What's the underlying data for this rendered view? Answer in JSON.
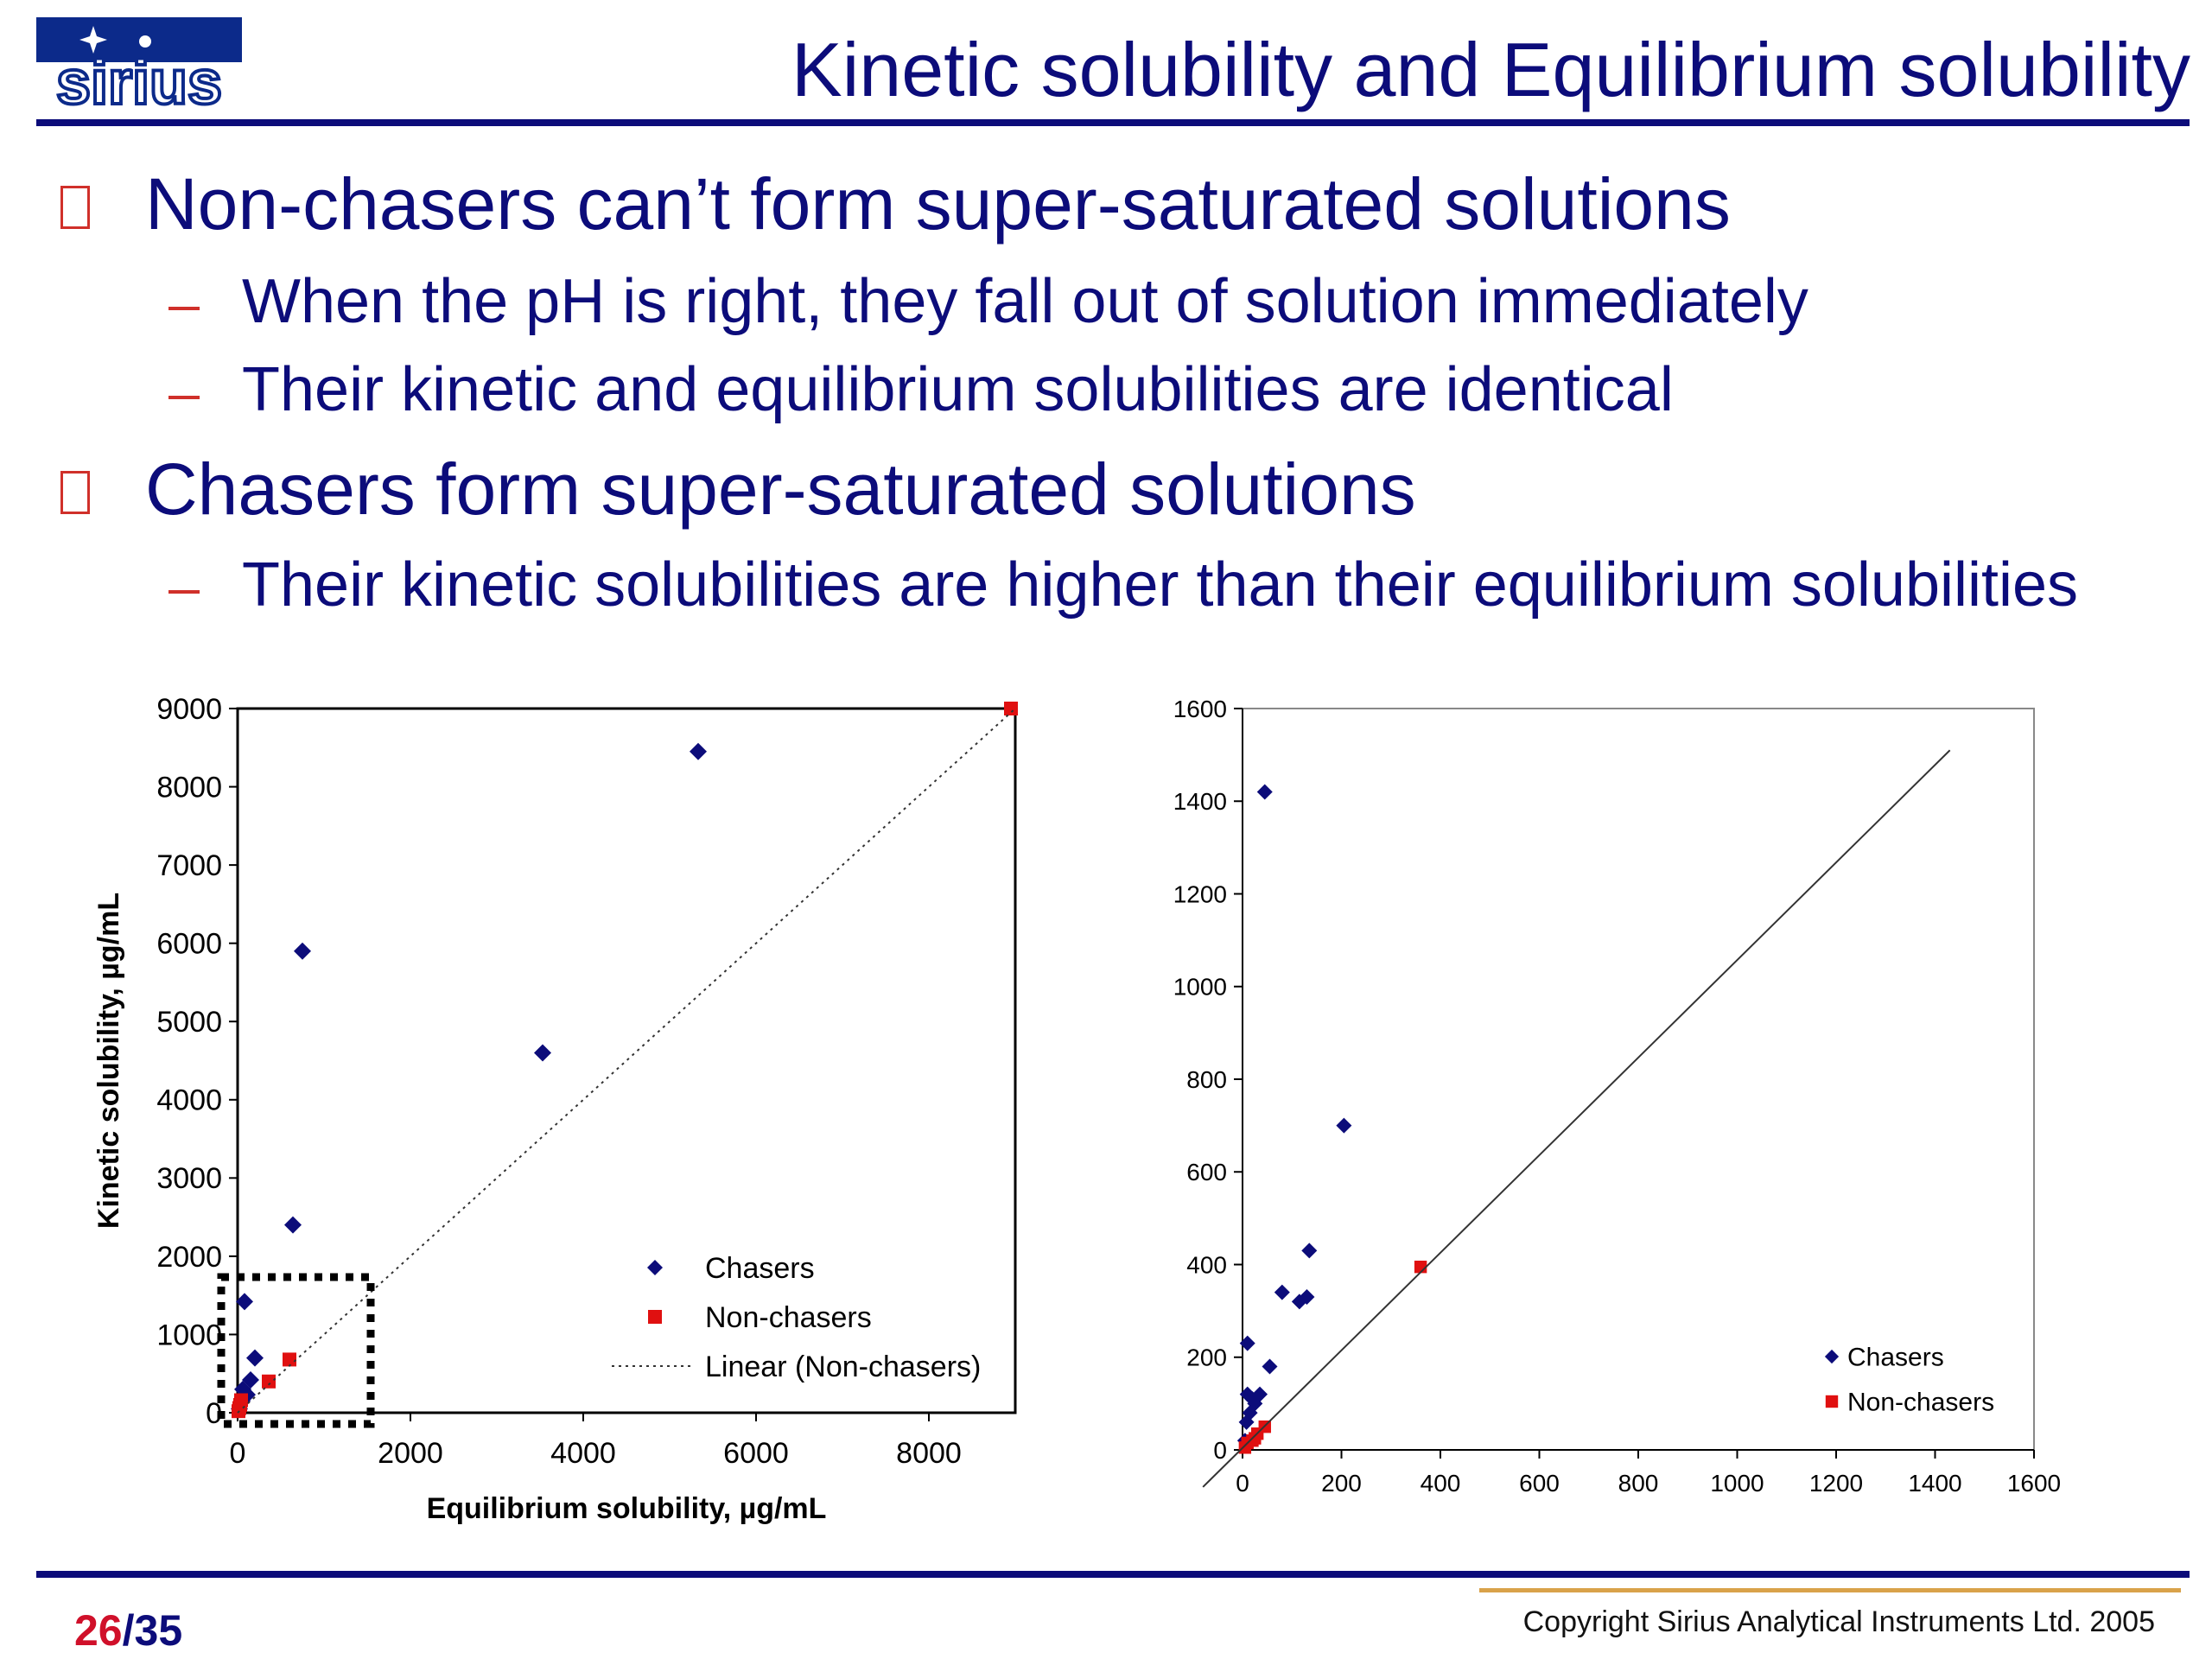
{
  "header": {
    "logo_text": "sirius",
    "title": "Kinetic solubility and Equilibrium solubility"
  },
  "bullets": {
    "b1": "Non-chasers can’t form super-saturated solutions",
    "b1_s1": "When the pH is right, they fall out of solution immediately",
    "b1_s2": "Their kinetic and equilibrium solubilities are identical",
    "b2": "Chasers form super-saturated solutions",
    "b2_s1": "Their kinetic solubilities are higher than their equilibrium solubilities"
  },
  "colors": {
    "title": "#0c0c7a",
    "bullet_mark": "#d0302a",
    "chasers": "#0c0c7a",
    "non_chasers": "#e01010",
    "page_current": "#d0102a"
  },
  "footer": {
    "page_current": "26",
    "page_sep": "/",
    "page_total": "35",
    "copyright": "Copyright Sirius Analytical Instruments Ltd. 2005"
  },
  "chart_data": [
    {
      "type": "scatter",
      "title": "",
      "xlabel": "Equilibrium solubility, µg/mL",
      "ylabel": "Kinetic solubility, µg/mL",
      "xlim": [
        0,
        9000
      ],
      "ylim": [
        0,
        9000
      ],
      "xticks": [
        "0",
        "2000",
        "4000",
        "6000",
        "8000"
      ],
      "yticks": [
        "0",
        "1000",
        "2000",
        "3000",
        "4000",
        "5000",
        "6000",
        "7000",
        "8000",
        "9000"
      ],
      "legend_position": "bottom-right",
      "grid": false,
      "series": [
        {
          "name": "Chasers",
          "marker": "diamond",
          "points": [
            [
              20,
              50
            ],
            [
              50,
              150
            ],
            [
              60,
              300
            ],
            [
              80,
              1420
            ],
            [
              110,
              230
            ],
            [
              150,
              420
            ],
            [
              200,
              700
            ],
            [
              640,
              2400
            ],
            [
              750,
              5900
            ],
            [
              3530,
              4600
            ],
            [
              5330,
              8450
            ]
          ]
        },
        {
          "name": "Non-chasers",
          "marker": "square",
          "points": [
            [
              10,
              20
            ],
            [
              20,
              60
            ],
            [
              30,
              100
            ],
            [
              40,
              160
            ],
            [
              360,
              400
            ],
            [
              600,
              680
            ],
            [
              8950,
              9000
            ]
          ]
        },
        {
          "name": "Linear (Non-chasers)",
          "style": "dotted-line",
          "points": [
            [
              0,
              0
            ],
            [
              9000,
              9000
            ]
          ]
        }
      ],
      "annotation": "zoom-region-box"
    },
    {
      "type": "scatter",
      "title": "",
      "xlabel": "",
      "ylabel": "",
      "xlim": [
        0,
        1600
      ],
      "ylim": [
        0,
        1600
      ],
      "xticks": [
        "0",
        "200",
        "400",
        "600",
        "800",
        "1000",
        "1200",
        "1400",
        "1600"
      ],
      "yticks": [
        "0",
        "200",
        "400",
        "600",
        "800",
        "1000",
        "1200",
        "1400",
        "1600"
      ],
      "legend_position": "bottom-right",
      "grid": false,
      "series": [
        {
          "name": "Chasers",
          "marker": "diamond",
          "points": [
            [
              5,
              20
            ],
            [
              8,
              60
            ],
            [
              10,
              230
            ],
            [
              10,
              120
            ],
            [
              15,
              80
            ],
            [
              20,
              110
            ],
            [
              25,
              100
            ],
            [
              35,
              120
            ],
            [
              45,
              1420
            ],
            [
              55,
              180
            ],
            [
              80,
              340
            ],
            [
              115,
              320
            ],
            [
              130,
              330
            ],
            [
              135,
              430
            ],
            [
              205,
              700
            ]
          ]
        },
        {
          "name": "Non-chasers",
          "marker": "square",
          "points": [
            [
              5,
              5
            ],
            [
              10,
              15
            ],
            [
              20,
              20
            ],
            [
              25,
              25
            ],
            [
              30,
              35
            ],
            [
              45,
              50
            ],
            [
              360,
              395
            ]
          ]
        },
        {
          "name": "",
          "style": "solid-line",
          "points": [
            [
              -80,
              -80
            ],
            [
              1430,
              1510
            ]
          ]
        }
      ]
    }
  ]
}
